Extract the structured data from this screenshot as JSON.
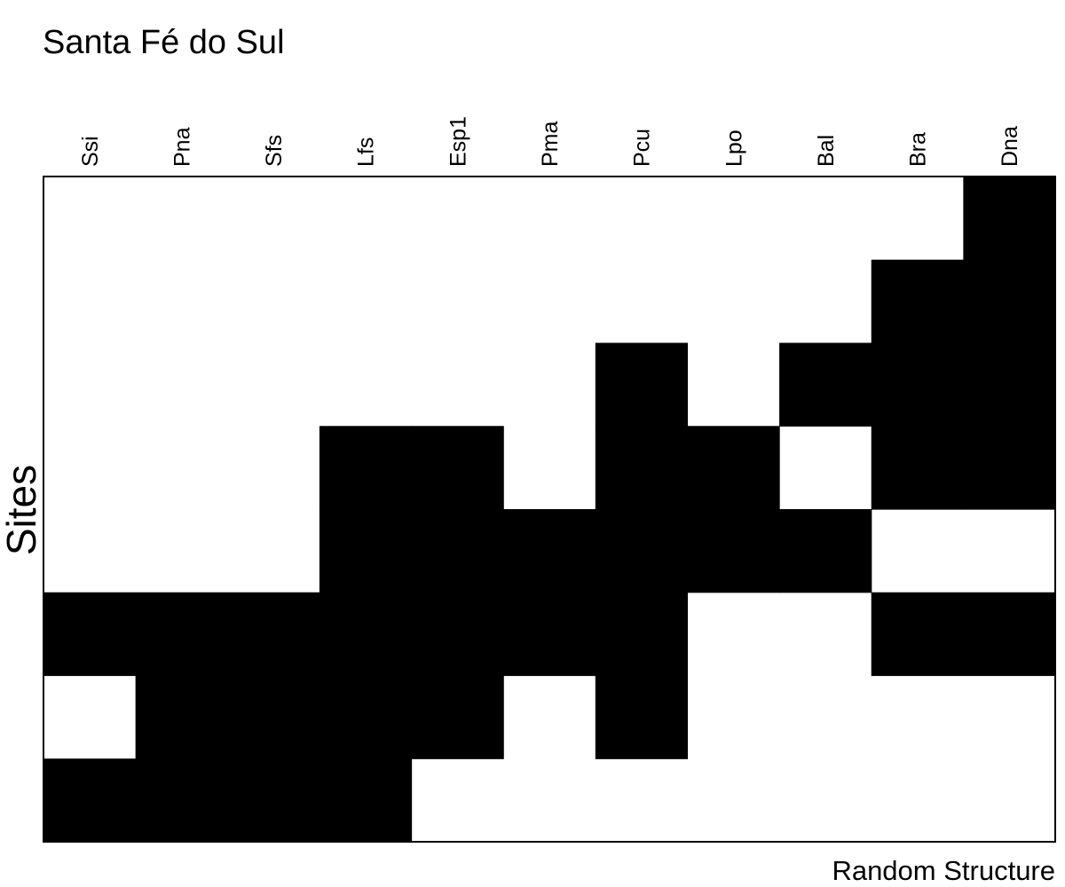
{
  "chart_data": {
    "type": "heatmap",
    "title": "Santa Fé do Sul",
    "xlabel": "Random Structure",
    "ylabel": "Sites",
    "columns": [
      "Ssi",
      "Pna",
      "Sfs",
      "Lfs",
      "Esp1",
      "Pma",
      "Pcu",
      "Lpo",
      "Bal",
      "Bra",
      "Dna"
    ],
    "rows": 8,
    "matrix": [
      [
        0,
        0,
        0,
        0,
        0,
        0,
        0,
        0,
        0,
        0,
        1
      ],
      [
        0,
        0,
        0,
        0,
        0,
        0,
        0,
        0,
        0,
        1,
        1
      ],
      [
        0,
        0,
        0,
        0,
        0,
        0,
        1,
        0,
        1,
        1,
        1
      ],
      [
        0,
        0,
        0,
        1,
        1,
        0,
        1,
        1,
        0,
        1,
        1
      ],
      [
        0,
        0,
        0,
        1,
        1,
        1,
        1,
        1,
        1,
        0,
        0
      ],
      [
        1,
        1,
        1,
        1,
        1,
        1,
        1,
        0,
        0,
        1,
        1
      ],
      [
        0,
        1,
        1,
        1,
        1,
        0,
        1,
        0,
        0,
        0,
        0
      ],
      [
        1,
        1,
        1,
        1,
        0,
        0,
        0,
        0,
        0,
        0,
        0
      ]
    ],
    "colors": {
      "presence": "#000000",
      "absence": "#ffffff",
      "border": "#000000"
    }
  }
}
